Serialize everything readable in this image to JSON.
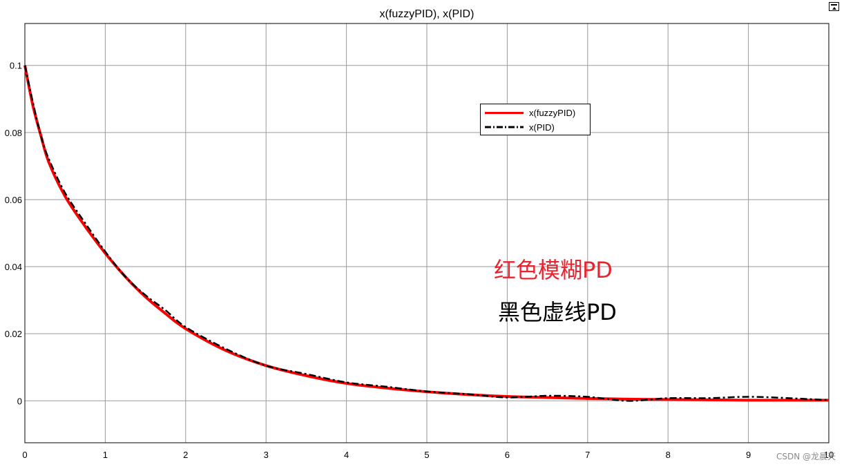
{
  "window": {
    "restore_icon": "restore-window-icon"
  },
  "chart_data": {
    "type": "line",
    "title": "x(fuzzyPID), x(PID)",
    "xlabel": "",
    "ylabel": "",
    "xlim": [
      0,
      10
    ],
    "ylim": [
      -0.0125,
      0.1125
    ],
    "grid": true,
    "x_ticks": [
      0,
      1,
      2,
      3,
      4,
      5,
      6,
      7,
      8,
      9,
      10
    ],
    "y_ticks": [
      0,
      0.02,
      0.04,
      0.06,
      0.08,
      0.1
    ],
    "x_tick_labels": [
      "0",
      "1",
      "2",
      "3",
      "4",
      "5",
      "6",
      "7",
      "8",
      "9",
      "10"
    ],
    "y_tick_labels": [
      "0",
      "0.02",
      "0.04",
      "0.06",
      "0.08",
      "0.1"
    ],
    "legend_position": "upper-right-inside",
    "x": [
      0,
      0.1,
      0.2,
      0.3,
      0.5,
      0.75,
      1,
      1.25,
      1.5,
      1.75,
      2,
      2.5,
      3,
      3.5,
      4,
      4.5,
      5,
      5.5,
      6,
      6.5,
      7,
      7.5,
      8,
      8.5,
      9,
      9.5,
      10
    ],
    "series": [
      {
        "name": "x(fuzzyPID)",
        "color": "#ff0000",
        "style": "solid",
        "values": [
          0.1,
          0.088,
          0.079,
          0.071,
          0.061,
          0.052,
          0.044,
          0.037,
          0.031,
          0.026,
          0.0215,
          0.015,
          0.0105,
          0.0075,
          0.0052,
          0.0038,
          0.0027,
          0.0019,
          0.0013,
          0.001,
          0.0007,
          0.0005,
          0.0004,
          0.0003,
          0.0002,
          0.0002,
          0.0002
        ]
      },
      {
        "name": "x(PID)",
        "color": "#000000",
        "style": "dash-dot",
        "values": [
          0.1,
          0.089,
          0.079,
          0.072,
          0.062,
          0.053,
          0.0445,
          0.037,
          0.0315,
          0.027,
          0.022,
          0.0155,
          0.0105,
          0.008,
          0.0055,
          0.0042,
          0.0028,
          0.002,
          0.001,
          0.0015,
          0.0012,
          0.0,
          0.0008,
          0.0008,
          0.0012,
          0.0008,
          0.0002
        ]
      }
    ]
  },
  "annotations": [
    {
      "text": "红色模糊PD",
      "color": "#e8242f"
    },
    {
      "text": "黑色虚线PD",
      "color": "#000000"
    }
  ],
  "watermark": "CSDN @龙晨天"
}
